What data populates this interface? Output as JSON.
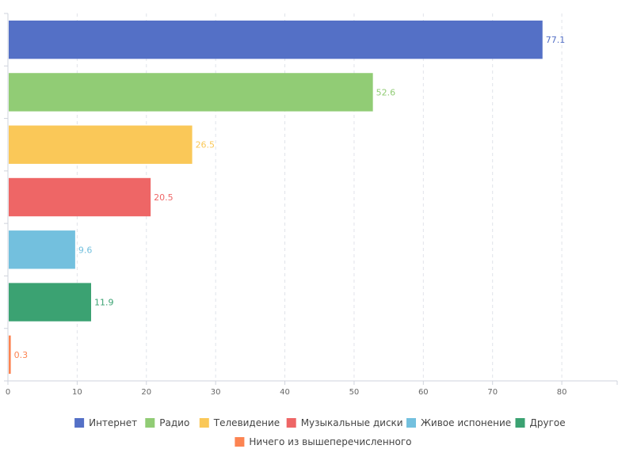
{
  "chart_data": {
    "type": "bar",
    "orientation": "horizontal",
    "categories": [
      "Интернет",
      "Радио",
      "Телевидение",
      "Музыкальные диски",
      "Живое испонение",
      "Другое",
      "Ничего из вышеперечисленного"
    ],
    "values": [
      77.1,
      52.6,
      26.5,
      20.5,
      9.6,
      11.9,
      0.3
    ],
    "value_labels": [
      "77.1",
      "52.6",
      "26.5",
      "20.5",
      "9.6",
      "11.9",
      "0.3"
    ],
    "colors": [
      "#5470c6",
      "#91cc75",
      "#fac858",
      "#ee6666",
      "#73c0de",
      "#3ba272",
      "#fc8452"
    ],
    "xlim": [
      0,
      88
    ],
    "xticks": [
      0,
      10,
      20,
      30,
      40,
      50,
      60,
      70,
      80
    ],
    "tick_labels": [
      "0",
      "10",
      "20",
      "30",
      "40",
      "50",
      "60",
      "70",
      "80"
    ],
    "grid": true,
    "legend_position": "bottom",
    "title": "",
    "xlabel": "",
    "ylabel": ""
  }
}
